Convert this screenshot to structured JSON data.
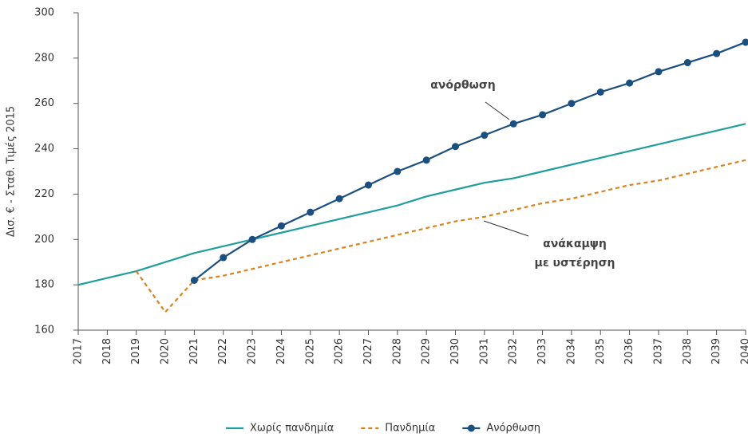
{
  "chart_data": {
    "type": "line",
    "y_label": "Δισ. € - Σταθ. Τιμές 2015",
    "categories": [
      "2017",
      "2018",
      "2019",
      "2020",
      "2021",
      "2022",
      "2023",
      "2024",
      "2025",
      "2026",
      "2027",
      "2028",
      "2029",
      "2030",
      "2031",
      "2032",
      "2033",
      "2034",
      "2035",
      "2036",
      "2037",
      "2038",
      "2039",
      "2040"
    ],
    "series": [
      {
        "name": "Χωρίς πανδημία",
        "color": "#1f9e9c",
        "dash": false,
        "marker": false,
        "values": [
          180,
          183,
          186,
          190,
          194,
          197,
          200,
          203,
          206,
          209,
          212,
          215,
          219,
          222,
          225,
          227,
          230,
          233,
          236,
          239,
          242,
          245,
          248,
          251
        ]
      },
      {
        "name": "Πανδημία",
        "color": "#d9831f",
        "dash": true,
        "marker": false,
        "values": [
          null,
          null,
          186,
          168,
          182,
          184,
          187,
          190,
          193,
          196,
          199,
          202,
          205,
          208,
          210,
          213,
          216,
          218,
          221,
          224,
          226,
          229,
          232,
          235
        ]
      },
      {
        "name": "Ανόρθωση",
        "color": "#1a4f80",
        "dash": false,
        "marker": true,
        "values": [
          null,
          null,
          null,
          null,
          182,
          192,
          200,
          206,
          212,
          218,
          224,
          230,
          235,
          241,
          246,
          251,
          255,
          260,
          265,
          269,
          274,
          278,
          282,
          287
        ]
      }
    ],
    "annotations": [
      "ανόρθωση",
      "ανάκαμψη",
      "με υστέρηση"
    ],
    "ylim": [
      160,
      300
    ],
    "yticks": [
      160,
      180,
      200,
      220,
      240,
      260,
      280,
      300
    ],
    "grid": false
  }
}
